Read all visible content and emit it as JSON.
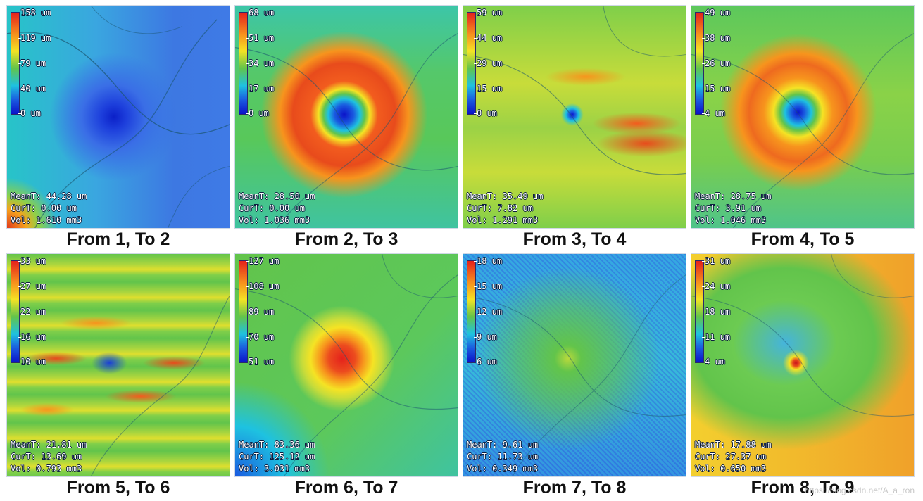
{
  "panels": [
    {
      "caption": "From 1, To 2",
      "ticks": [
        "158 um",
        "119 um",
        "79 um",
        "40 um",
        "0 um"
      ],
      "mean": "MeanT: 44.28 um",
      "cur": "CurT: 0.00 um",
      "vol": "Vol: 1.610 mm3"
    },
    {
      "caption": "From 2, To 3",
      "ticks": [
        "68 um",
        "51 um",
        "34 um",
        "17 um",
        "0 um"
      ],
      "mean": "MeanT: 28.50 um",
      "cur": "CurT: 0.00 um",
      "vol": "Vol: 1.036 mm3"
    },
    {
      "caption": "From 3, To 4",
      "ticks": [
        "59 um",
        "44 um",
        "29 um",
        "15 um",
        "0 um"
      ],
      "mean": "MeanT: 35.49 um",
      "cur": "CurT: 7.82 um",
      "vol": "Vol: 1.291 mm3"
    },
    {
      "caption": "From 4, To 5",
      "ticks": [
        "49 um",
        "38 um",
        "26 um",
        "15 um",
        "4 um"
      ],
      "mean": "MeanT: 28.75 um",
      "cur": "CurT: 3.91 um",
      "vol": "Vol: 1.046 mm3"
    },
    {
      "caption": "From 5, To 6",
      "ticks": [
        "33 um",
        "27 um",
        "22 um",
        "16 um",
        "10 um"
      ],
      "mean": "MeanT: 21.81 um",
      "cur": "CurT: 13.69 um",
      "vol": "Vol: 0.793 mm3"
    },
    {
      "caption": "From 6, To 7",
      "ticks": [
        "127 um",
        "108 um",
        "89 um",
        "70 um",
        "51 um"
      ],
      "mean": "MeanT: 83.36 um",
      "cur": "CurT: 125.12 um",
      "vol": "Vol: 3.031 mm3"
    },
    {
      "caption": "From 7, To 8",
      "ticks": [
        "18 um",
        "15 um",
        "12 um",
        "9 um",
        "6 um"
      ],
      "mean": "MeanT: 9.61 um",
      "cur": "CurT: 11.73 um",
      "vol": "Vol: 0.349 mm3"
    },
    {
      "caption": "From 8, To 9",
      "ticks": [
        "31 um",
        "24 um",
        "18 um",
        "11 um",
        "4 um"
      ],
      "mean": "MeanT: 17.88 um",
      "cur": "CurT: 27.37 um",
      "vol": "Vol: 0.650 mm3"
    }
  ],
  "watermark": "https://blog.csdn.net/A_a_ron",
  "colors": {
    "red": "#e4211c",
    "orange": "#f7941d",
    "yellow": "#f5e324",
    "green": "#62c44b",
    "cyan": "#1ec2e0",
    "blue": "#1a5be0",
    "darkblue": "#0b12c9"
  }
}
